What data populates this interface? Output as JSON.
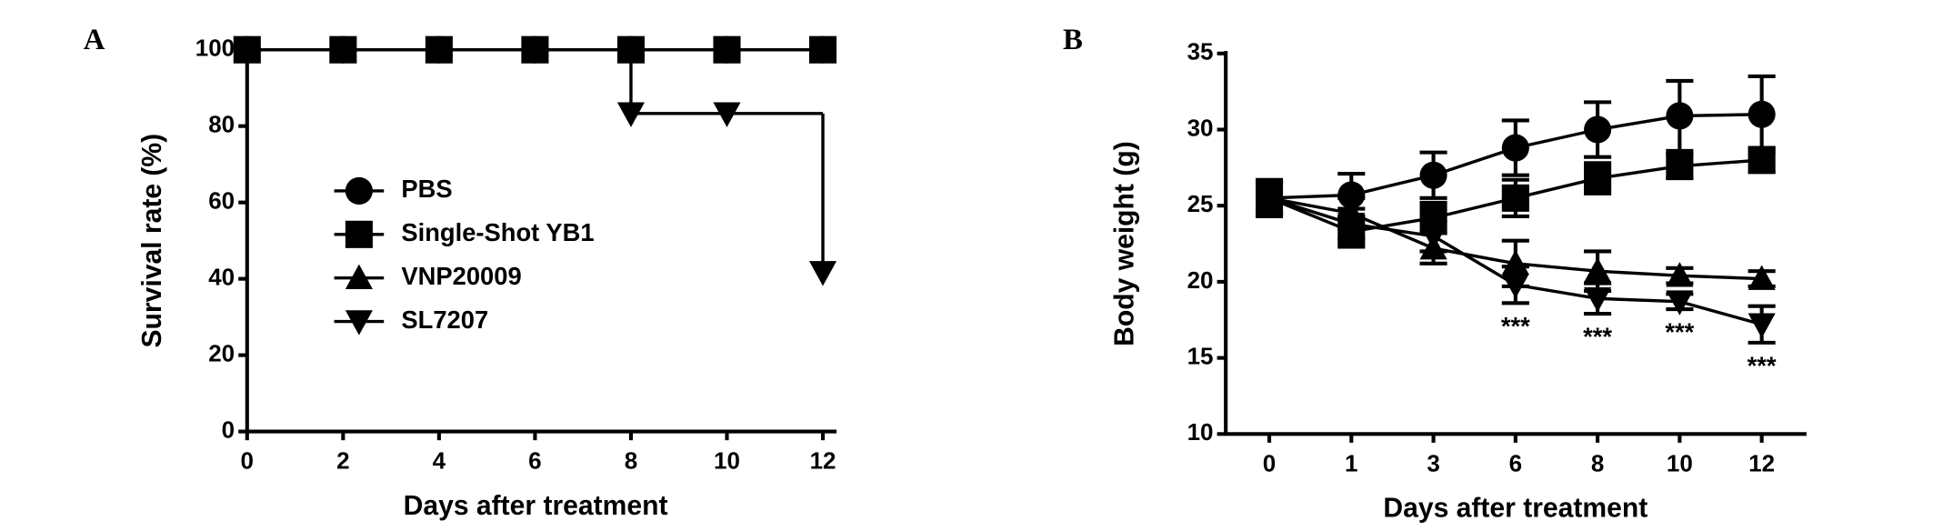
{
  "chart_data": [
    {
      "type": "step",
      "panel_label": "A",
      "x_label": "Days after treatment",
      "y_label": "Survival rate (%)",
      "x": [
        0,
        2,
        4,
        6,
        8,
        10,
        12
      ],
      "xlim": [
        0,
        12
      ],
      "xticks": [
        0,
        2,
        4,
        6,
        8,
        10,
        12
      ],
      "ylim": [
        0,
        100
      ],
      "yticks": [
        0,
        20,
        40,
        60,
        80,
        100
      ],
      "legend": "center-left",
      "series": [
        {
          "name": "PBS",
          "color": "#000000",
          "marker": "circle",
          "values": [
            100,
            100,
            100,
            100,
            100,
            100,
            100
          ]
        },
        {
          "name": "Single-Shot YB1",
          "color": "#000000",
          "marker": "square",
          "values": [
            100,
            100,
            100,
            100,
            100,
            100,
            100
          ]
        },
        {
          "name": "VNP20009",
          "color": "#000000",
          "marker": "triangle-up",
          "values": [
            100,
            100,
            100,
            100,
            100,
            100,
            100
          ]
        },
        {
          "name": "SL7207",
          "color": "#000000",
          "marker": "triangle-down",
          "values": [
            100,
            100,
            100,
            100,
            83.3,
            83.3,
            41.7
          ]
        }
      ]
    },
    {
      "type": "line",
      "panel_label": "B",
      "x_label": "Days after treatment",
      "y_label": "Body weight (g)",
      "categories": [
        "0",
        "1",
        "3",
        "6",
        "8",
        "10",
        "12"
      ],
      "ylim": [
        10,
        35
      ],
      "yticks": [
        10,
        15,
        20,
        25,
        30,
        35
      ],
      "series": [
        {
          "name": "PBS",
          "color": "#000000",
          "marker": "circle",
          "values": [
            25.5,
            25.7,
            27,
            28.8,
            30,
            30.9,
            31
          ],
          "errors": [
            1.2,
            1.4,
            1.5,
            1.8,
            1.8,
            2.3,
            2.5
          ]
        },
        {
          "name": "Single-Shot YB1",
          "color": "#000000",
          "marker": "square",
          "values": [
            25.5,
            23.3,
            24.2,
            25.5,
            26.8,
            27.6,
            28
          ],
          "errors": [
            1,
            1,
            1,
            1.2,
            1,
            0.8,
            0.8
          ]
        },
        {
          "name": "VNP20009",
          "color": "#000000",
          "marker": "triangle-up",
          "values": [
            25.5,
            24.5,
            22.2,
            21.2,
            20.7,
            20.4,
            20.2
          ],
          "errors": [
            1,
            1,
            1,
            1.5,
            1.3,
            0.5,
            0.5
          ]
        },
        {
          "name": "SL7207",
          "color": "#000000",
          "marker": "triangle-down",
          "values": [
            25.5,
            23.8,
            23,
            19.8,
            18.9,
            18.7,
            17.2
          ],
          "errors": [
            1,
            1,
            1,
            1.2,
            1,
            0.5,
            1.2
          ]
        }
      ],
      "annotations": [
        {
          "text": "***",
          "x": "6"
        },
        {
          "text": "***",
          "x": "8"
        },
        {
          "text": "***",
          "x": "10"
        },
        {
          "text": "***",
          "x": "12"
        }
      ]
    }
  ]
}
